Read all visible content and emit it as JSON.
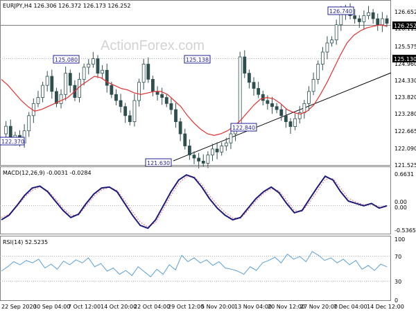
{
  "chart_data": [
    {
      "type": "line",
      "series": [
        {
          "name": "EURJPY,H4",
          "values": [
            122.6,
            122.85,
            122.45,
            122.55,
            122.3,
            122.7,
            123.2,
            123.6,
            123.8,
            124.2,
            124.5,
            124.0,
            123.6,
            123.9,
            124.6,
            124.2,
            123.8,
            124.4,
            124.8,
            124.9,
            125.08,
            124.6,
            124.7,
            124.2,
            123.9,
            123.7,
            123.5,
            123.2,
            123.0,
            123.7,
            124.3,
            124.9,
            124.4,
            124.0,
            123.9,
            123.8,
            123.6,
            123.4,
            123.0,
            122.6,
            122.2,
            121.9,
            121.8,
            121.7,
            121.63,
            121.9,
            122.1,
            122.0,
            122.2,
            122.3,
            122.6,
            122.8,
            125.14,
            124.6,
            124.3,
            124.1,
            123.9,
            123.7,
            123.6,
            123.5,
            123.4,
            123.2,
            123.0,
            122.84,
            123.1,
            123.3,
            123.6,
            124.0,
            124.4,
            124.9,
            125.3,
            125.6,
            125.7,
            126.2,
            126.6,
            126.74,
            126.5,
            126.4,
            126.3,
            126.5,
            126.6,
            126.4,
            126.2,
            126.4,
            126.25
          ]
        },
        {
          "name": "MA",
          "values": [
            124.4,
            124.2,
            123.95,
            123.7,
            123.5,
            123.35,
            123.4,
            123.5,
            123.6,
            123.7,
            123.8,
            124.0,
            124.2,
            124.35,
            124.5,
            124.45,
            124.3,
            124.2,
            124.1,
            124.05,
            123.95,
            123.9,
            123.95,
            124.0,
            124.0,
            123.9,
            123.7,
            123.5,
            123.2,
            122.95,
            122.75,
            122.6,
            122.55,
            122.6,
            122.7,
            122.85,
            123.05,
            123.3,
            123.55,
            123.75,
            123.8,
            123.75,
            123.6,
            123.4,
            123.3,
            123.25,
            123.35,
            123.55,
            123.9,
            124.3,
            124.75,
            125.2,
            125.6,
            125.85,
            126.0,
            126.1,
            126.15,
            126.2,
            126.15
          ]
        }
      ],
      "ylim": [
        121.525,
        126.652
      ],
      "y_ticks": [
        "126.652",
        "126.115",
        "125.575",
        "124.960",
        "124.330",
        "123.820",
        "123.280",
        "122.665",
        "122.090",
        "121.525"
      ],
      "reference_levels": [
        {
          "value": 126.252,
          "label": "126.252"
        },
        {
          "value": 125.13,
          "label": "125.130"
        }
      ],
      "annotations": [
        "126.740",
        "125.080",
        "125.138",
        "122.840",
        "122.370",
        "121.630"
      ],
      "trendline": {
        "from": 121.63,
        "to": 124.8
      }
    },
    {
      "type": "line",
      "series": [
        {
          "name": "MACD",
          "values": [
            -0.3,
            -0.2,
            0.0,
            0.22,
            0.38,
            0.42,
            0.3,
            0.1,
            -0.1,
            -0.25,
            -0.18,
            0.05,
            0.25,
            0.38,
            0.4,
            0.3,
            0.05,
            -0.2,
            -0.42,
            -0.48,
            -0.3,
            0.0,
            0.3,
            0.55,
            0.66,
            0.6,
            0.4,
            0.15,
            -0.05,
            -0.2,
            -0.3,
            -0.25,
            -0.05,
            0.15,
            0.3,
            0.4,
            0.28,
            0.05,
            -0.15,
            -0.1,
            0.15,
            0.4,
            0.63,
            0.55,
            0.3,
            0.1,
            0.05,
            0.0,
            0.05,
            -0.05,
            0.0
          ]
        },
        {
          "name": "Signal",
          "values": [
            -0.25,
            -0.18,
            -0.02,
            0.18,
            0.33,
            0.4,
            0.33,
            0.15,
            -0.05,
            -0.2,
            -0.2,
            0.0,
            0.2,
            0.34,
            0.39,
            0.33,
            0.12,
            -0.12,
            -0.35,
            -0.45,
            -0.36,
            -0.08,
            0.22,
            0.48,
            0.62,
            0.62,
            0.46,
            0.22,
            0.02,
            -0.14,
            -0.26,
            -0.27,
            -0.1,
            0.1,
            0.26,
            0.37,
            0.32,
            0.12,
            -0.1,
            -0.12,
            0.08,
            0.32,
            0.56,
            0.58,
            0.38,
            0.16,
            0.08,
            0.02,
            0.04,
            -0.02,
            -0.03
          ]
        }
      ],
      "y_ticks": [
        "0.6631",
        "0.00",
        "0.00",
        "-0.5365"
      ],
      "ylim": [
        -0.5365,
        0.6631
      ]
    },
    {
      "type": "line",
      "series": [
        {
          "name": "RSI",
          "values": [
            45,
            52,
            60,
            55,
            62,
            58,
            64,
            50,
            56,
            48,
            61,
            55,
            63,
            58,
            66,
            52,
            57,
            45,
            50,
            40,
            46,
            38,
            52,
            44,
            36,
            48,
            40,
            55,
            47,
            70,
            60,
            66,
            58,
            63,
            54,
            60,
            50,
            48,
            45,
            40,
            52,
            46,
            58,
            62,
            67,
            58,
            72,
            64,
            68,
            60,
            76,
            70,
            62,
            66,
            58,
            64,
            55,
            62,
            48,
            54,
            46,
            56,
            52
          ]
        }
      ],
      "ylim": [
        0,
        100
      ],
      "y_ticks": [
        "100",
        "70",
        "30",
        "0"
      ]
    }
  ],
  "header": {
    "main": "EURJPY,H4  126.306 126.372 126.173 126.252",
    "macd": "MACD(12,26,9) -0.0031 -0.0284",
    "rsi": "RSI(14) 52.5235"
  },
  "watermark": "ActionForex.com",
  "x_labels": [
    "22 Sep 2020",
    "30 Sep 04:00",
    "7 Oct 12:00",
    "14 Oct 20:00",
    "22 Oct 04:00",
    "29 Oct 12:00",
    "5 Nov 20:00",
    "13 Nov 04:00",
    "20 Nov 12:00",
    "27 Nov 20:00",
    "7 Dec 04:00",
    "14 Dec 12:00"
  ],
  "colors": {
    "candles": "#2f4f4f",
    "ma": "#e53030",
    "macd": "#1a1a7a",
    "signal": "#e07070",
    "rsi": "#5aa0d8",
    "label_border": "#1f1f99",
    "trendline": "#000000"
  }
}
